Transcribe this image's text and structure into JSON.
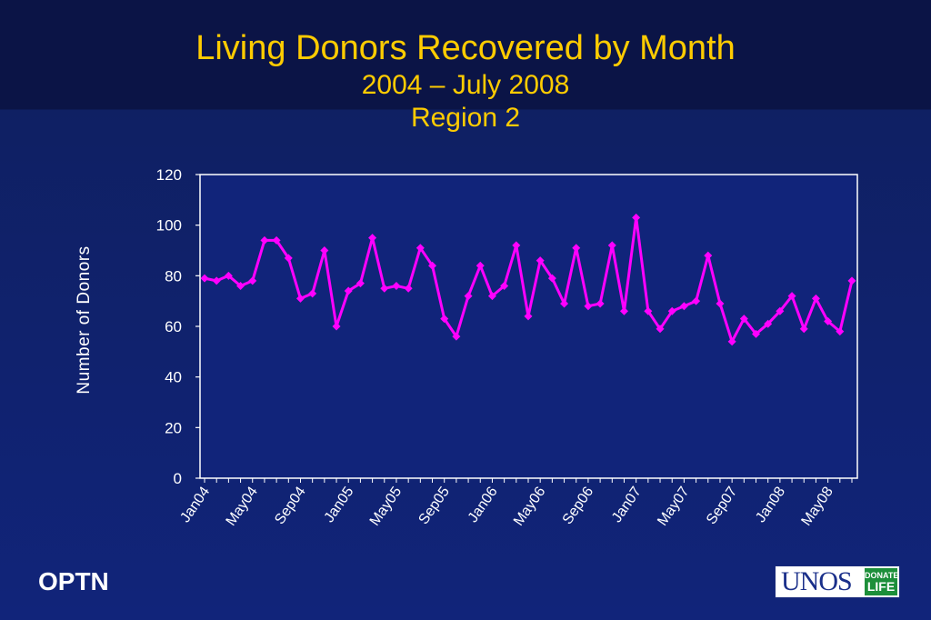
{
  "slide": {
    "title": "Living Donors Recovered by Month",
    "subtitle_line1": "2004 – July 2008",
    "subtitle_line2": "Region 2",
    "footer_left": "OPTN",
    "logo_main": "UNOS",
    "logo_badge_line1": "DONATE",
    "logo_badge_line2": "LIFE"
  },
  "colors": {
    "title": "#ffcc00",
    "series": "#ff00ff",
    "plot_bg": "#11247a",
    "axis": "#ffffff"
  },
  "chart_data": {
    "type": "line",
    "title": "Living Donors Recovered by Month",
    "ylabel": "Number of Donors",
    "xlabel": "",
    "ylim": [
      0,
      120
    ],
    "yticks": [
      0,
      20,
      40,
      60,
      80,
      100,
      120
    ],
    "grid": false,
    "x_tick_labels": [
      "Jan04",
      "May04",
      "Sep04",
      "Jan05",
      "May05",
      "Sep05",
      "Jan06",
      "May06",
      "Sep06",
      "Jan07",
      "May07",
      "Sep07",
      "Jan08",
      "May08"
    ],
    "x_tick_every": 4,
    "x": [
      "Jan04",
      "Feb04",
      "Mar04",
      "Apr04",
      "May04",
      "Jun04",
      "Jul04",
      "Aug04",
      "Sep04",
      "Oct04",
      "Nov04",
      "Dec04",
      "Jan05",
      "Feb05",
      "Mar05",
      "Apr05",
      "May05",
      "Jun05",
      "Jul05",
      "Aug05",
      "Sep05",
      "Oct05",
      "Nov05",
      "Dec05",
      "Jan06",
      "Feb06",
      "Mar06",
      "Apr06",
      "May06",
      "Jun06",
      "Jul06",
      "Aug06",
      "Sep06",
      "Oct06",
      "Nov06",
      "Dec06",
      "Jan07",
      "Feb07",
      "Mar07",
      "Apr07",
      "May07",
      "Jun07",
      "Jul07",
      "Aug07",
      "Sep07",
      "Oct07",
      "Nov07",
      "Dec07",
      "Jan08",
      "Feb08",
      "Mar08",
      "Apr08",
      "May08",
      "Jun08",
      "Jul08"
    ],
    "series": [
      {
        "values": [
          79,
          78,
          80,
          76,
          78,
          94,
          94,
          87,
          71,
          73,
          90,
          60,
          74,
          77,
          95,
          75,
          76,
          75,
          91,
          84,
          63,
          56,
          72,
          84,
          72,
          76,
          92,
          64,
          86,
          79,
          69,
          91,
          68,
          69,
          92,
          66,
          103,
          66,
          59,
          66,
          68,
          70,
          88,
          69,
          54,
          63,
          57,
          61,
          66,
          72,
          59,
          71,
          62,
          58,
          78
        ]
      }
    ]
  }
}
